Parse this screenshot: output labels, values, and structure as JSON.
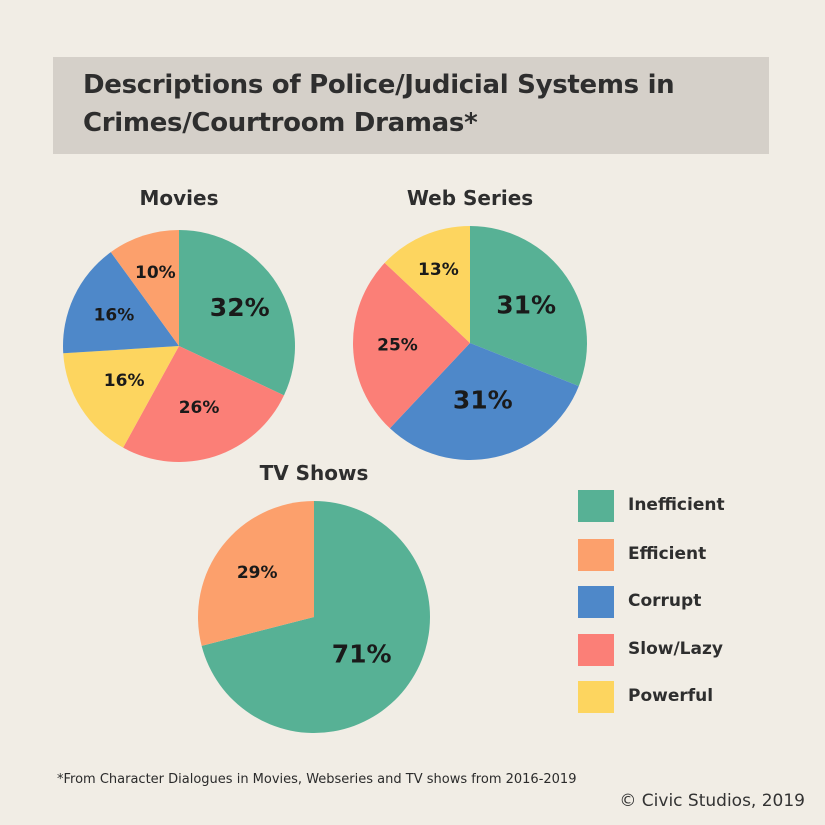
{
  "title": {
    "line1": "Descriptions of Police/Judicial Systems in",
    "line2": "Crimes/Courtroom Dramas*"
  },
  "colors": {
    "Inefficient": "#57b195",
    "Efficient": "#fca06c",
    "Corrupt": "#4e88c9",
    "Slow/Lazy": "#fb7f77",
    "Powerful": "#fdd55f"
  },
  "chart_data": [
    {
      "type": "pie",
      "title": "Movies",
      "categories": [
        "Inefficient",
        "Slow/Lazy",
        "Powerful",
        "Corrupt",
        "Efficient"
      ],
      "values": [
        32,
        26,
        16,
        16,
        10
      ],
      "labels": [
        "32%",
        "26%",
        "16%",
        "16%",
        "10%"
      ]
    },
    {
      "type": "pie",
      "title": "Web Series",
      "categories": [
        "Inefficient",
        "Corrupt",
        "Slow/Lazy",
        "Powerful"
      ],
      "values": [
        31,
        31,
        25,
        13
      ],
      "labels": [
        "31%",
        "31%",
        "25%",
        "13%"
      ]
    },
    {
      "type": "pie",
      "title": "TV Shows",
      "categories": [
        "Inefficient",
        "Efficient"
      ],
      "values": [
        71,
        29
      ],
      "labels": [
        "71%",
        "29%"
      ]
    }
  ],
  "legend": [
    {
      "label": "Inefficient",
      "color": "#57b195"
    },
    {
      "label": "Efficient",
      "color": "#fca06c"
    },
    {
      "label": "Corrupt",
      "color": "#4e88c9"
    },
    {
      "label": "Slow/Lazy",
      "color": "#fb7f77"
    },
    {
      "label": "Powerful",
      "color": "#fdd55f"
    }
  ],
  "footnote": "*From Character Dialogues in Movies, Webseries and TV shows from 2016-2019",
  "copyright": "© Civic Studios, 2019"
}
